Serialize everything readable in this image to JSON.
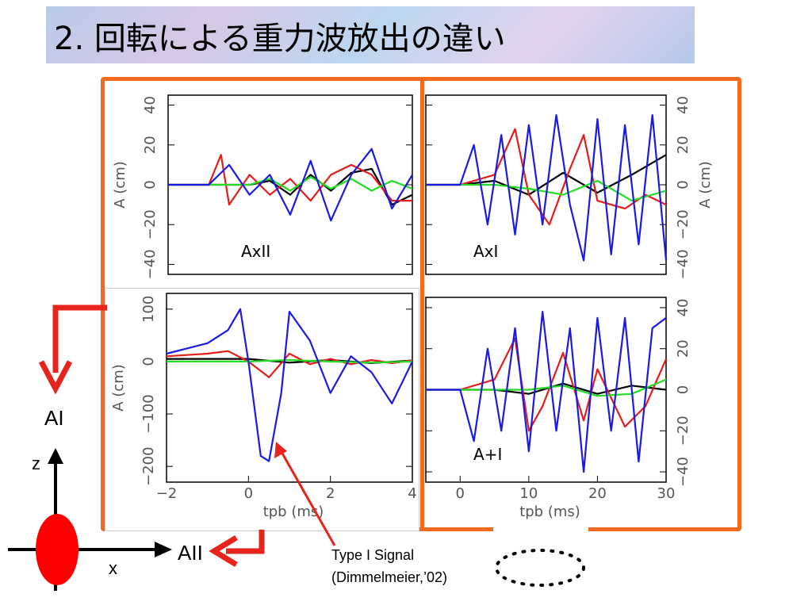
{
  "slide": {
    "title": "2. 回転による重力波放出の違い",
    "axis_label_ai": "AI",
    "axis_label_aii": "AII",
    "axis_z": "z",
    "axis_x": "x",
    "note_line1": "Type I Signal",
    "note_line2": "(Dimmelmeier,’02)"
  },
  "colors": {
    "frame": "#f26b1d",
    "arrow_red": "#e8231b",
    "ellipse": "#ff0000"
  },
  "icons": [
    "down-arrow-icon",
    "right-arrow-icon",
    "left-arrow-icon",
    "up-arrow-icon",
    "dotted-ellipse-icon"
  ],
  "chart_data": [
    {
      "type": "line",
      "panel_label": "AxII",
      "ylabel": "A (cm)",
      "xlim": [
        -2,
        4
      ],
      "ylim": [
        -45,
        45
      ],
      "yticks": [
        -40,
        -20,
        0,
        20,
        40
      ],
      "series": [
        {
          "color": "#000000",
          "x": [
            -2,
            -1,
            0,
            0.5,
            1,
            1.5,
            2,
            2.5,
            3,
            3.5,
            4
          ],
          "y": [
            0,
            0,
            0,
            2,
            -5,
            5,
            -3,
            6,
            8,
            -10,
            -5
          ]
        },
        {
          "color": "#e81b1b",
          "x": [
            -2,
            -1,
            -0.7,
            -0.5,
            0,
            0.5,
            1,
            1.5,
            2,
            2.5,
            3,
            3.5,
            4
          ],
          "y": [
            0,
            0,
            15,
            -10,
            5,
            -5,
            3,
            -8,
            5,
            10,
            5,
            -8,
            -8
          ]
        },
        {
          "color": "#22dd22",
          "x": [
            -2,
            -1,
            0,
            0.5,
            1,
            1.5,
            2,
            2.5,
            3,
            3.5,
            4
          ],
          "y": [
            0,
            0,
            0,
            3,
            -3,
            4,
            -2,
            3,
            -3,
            2,
            -2
          ]
        },
        {
          "color": "#1a1ae8",
          "x": [
            -2,
            -1,
            -0.5,
            0,
            0.5,
            1,
            1.5,
            2,
            2.5,
            3,
            3.5,
            4
          ],
          "y": [
            0,
            0,
            10,
            -5,
            5,
            -15,
            12,
            -18,
            5,
            18,
            -12,
            5
          ]
        }
      ]
    },
    {
      "type": "line",
      "panel_label": "AxI",
      "ylabel": "A (cm)",
      "xlim": [
        -5,
        30
      ],
      "ylim": [
        -45,
        45
      ],
      "yticks": [
        -40,
        -20,
        0,
        20,
        40
      ],
      "series": [
        {
          "color": "#000000",
          "x": [
            -5,
            0,
            5,
            10,
            15,
            20,
            25,
            30
          ],
          "y": [
            0,
            0,
            2,
            -5,
            6,
            -4,
            5,
            15
          ]
        },
        {
          "color": "#e81b1b",
          "x": [
            -5,
            0,
            5,
            8,
            10,
            13,
            16,
            18,
            20,
            24,
            27,
            30
          ],
          "y": [
            0,
            0,
            5,
            28,
            -5,
            -20,
            8,
            25,
            -8,
            -12,
            -5,
            -10
          ]
        },
        {
          "color": "#22dd22",
          "x": [
            -5,
            0,
            5,
            10,
            15,
            20,
            25,
            30
          ],
          "y": [
            0,
            0,
            0,
            -2,
            -5,
            2,
            -8,
            -3
          ]
        },
        {
          "color": "#1a1ae8",
          "x": [
            -5,
            0,
            2,
            4,
            6,
            8,
            10,
            12,
            14,
            16,
            18,
            20,
            22,
            24,
            26,
            28,
            30
          ],
          "y": [
            0,
            0,
            20,
            -20,
            25,
            -25,
            30,
            -20,
            35,
            -10,
            -38,
            33,
            -35,
            30,
            -30,
            35,
            -38
          ]
        }
      ]
    },
    {
      "type": "line",
      "panel_label": "",
      "ylabel": "A (cm)",
      "xlabel": "tpb (ms)",
      "xlim": [
        -2,
        4
      ],
      "ylim": [
        -230,
        130
      ],
      "xticks": [
        -2,
        0,
        2,
        4
      ],
      "yticks": [
        -200,
        -100,
        0,
        100
      ],
      "series": [
        {
          "color": "#000000",
          "x": [
            -2,
            -1,
            0,
            1,
            2,
            3,
            4
          ],
          "y": [
            5,
            5,
            5,
            -2,
            3,
            -3,
            2
          ]
        },
        {
          "color": "#e81b1b",
          "x": [
            -2,
            -1,
            -0.5,
            0,
            0.5,
            1,
            1.5,
            2,
            2.5,
            3,
            3.5,
            4
          ],
          "y": [
            10,
            15,
            20,
            0,
            -30,
            15,
            -5,
            5,
            -5,
            3,
            -3,
            2
          ]
        },
        {
          "color": "#22dd22",
          "x": [
            -2,
            -1,
            0,
            1,
            2,
            3,
            4
          ],
          "y": [
            0,
            0,
            0,
            3,
            0,
            -2,
            0
          ]
        },
        {
          "color": "#1a1ae8",
          "x": [
            -2,
            -1.5,
            -1,
            -0.5,
            -0.2,
            0,
            0.3,
            0.5,
            0.8,
            1,
            1.5,
            2,
            2.5,
            3,
            3.5,
            4
          ],
          "y": [
            15,
            25,
            35,
            60,
            100,
            0,
            -180,
            -190,
            -60,
            95,
            40,
            -60,
            10,
            -20,
            -80,
            0
          ]
        }
      ]
    },
    {
      "type": "line",
      "panel_label": "A+I",
      "ylabel": "",
      "xlabel": "tpb (ms)",
      "xlim": [
        -5,
        30
      ],
      "ylim": [
        -45,
        45
      ],
      "xticks": [
        0,
        10,
        20,
        30
      ],
      "yticks": [
        -40,
        -20,
        0,
        20,
        40
      ],
      "series": [
        {
          "color": "#000000",
          "x": [
            -5,
            0,
            5,
            10,
            15,
            20,
            25,
            30
          ],
          "y": [
            0,
            0,
            0,
            -2,
            3,
            -2,
            2,
            0
          ]
        },
        {
          "color": "#e81b1b",
          "x": [
            -5,
            0,
            5,
            8,
            10,
            12,
            15,
            18,
            20,
            24,
            27,
            30
          ],
          "y": [
            0,
            0,
            5,
            25,
            -20,
            -8,
            18,
            -15,
            10,
            -18,
            -8,
            15
          ]
        },
        {
          "color": "#22dd22",
          "x": [
            -5,
            0,
            5,
            10,
            15,
            20,
            25,
            30
          ],
          "y": [
            0,
            0,
            0,
            0,
            2,
            -3,
            -2,
            5
          ]
        },
        {
          "color": "#1a1ae8",
          "x": [
            -5,
            0,
            2,
            4,
            6,
            8,
            10,
            12,
            14,
            16,
            18,
            20,
            22,
            24,
            26,
            28,
            30
          ],
          "y": [
            0,
            0,
            -25,
            20,
            -20,
            30,
            -30,
            38,
            -20,
            30,
            -40,
            35,
            -20,
            35,
            -35,
            30,
            35
          ]
        }
      ]
    }
  ]
}
